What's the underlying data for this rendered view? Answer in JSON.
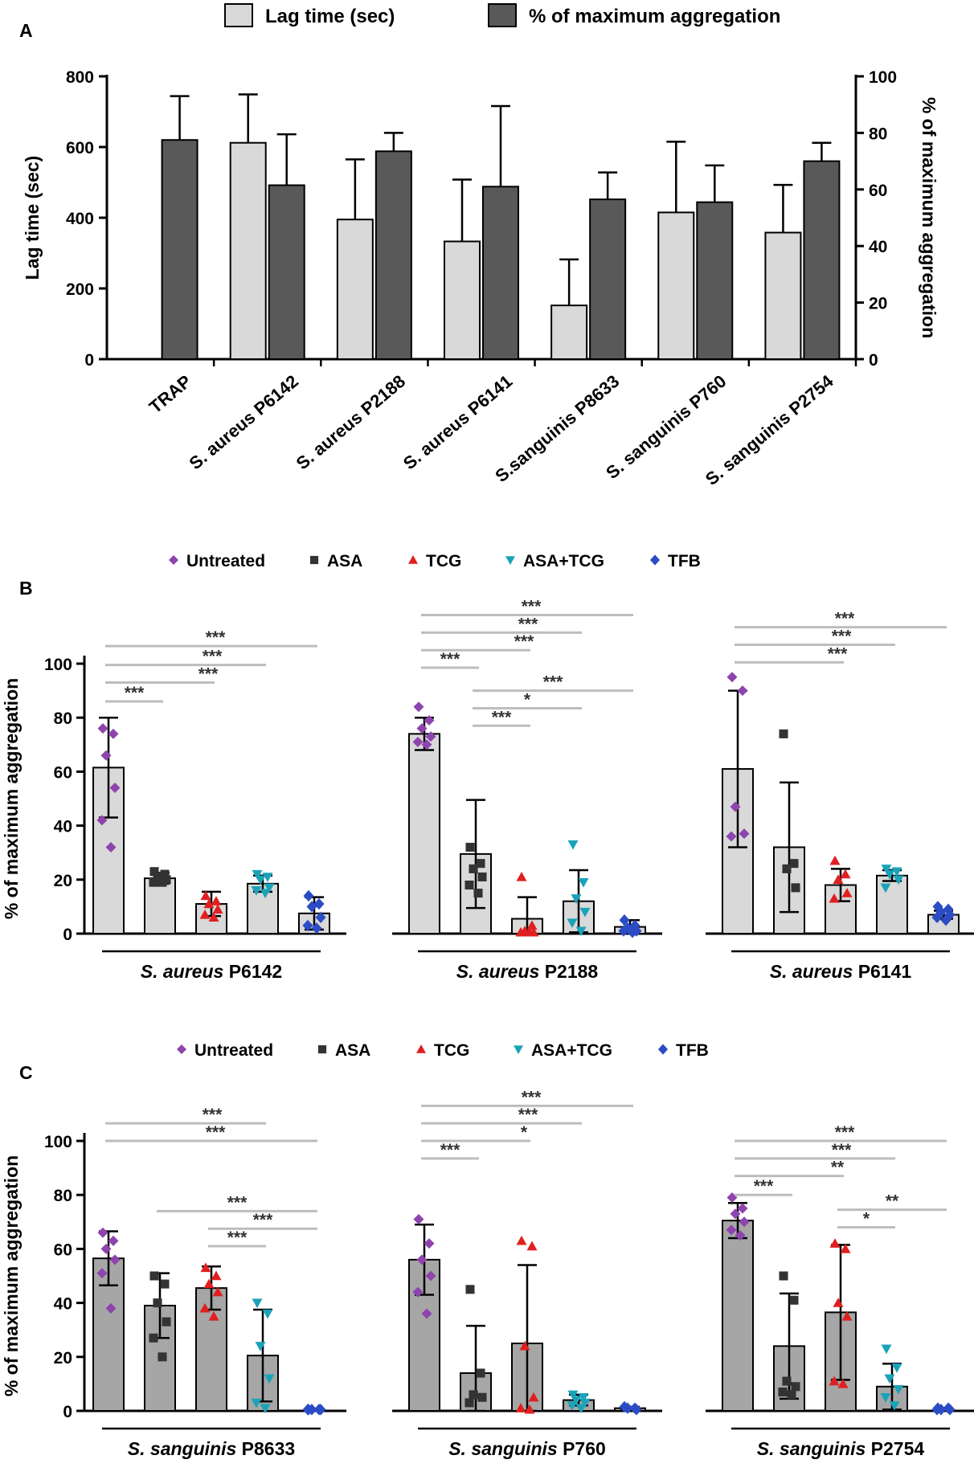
{
  "panels": {
    "A": {
      "label": "A"
    },
    "B": {
      "label": "B"
    },
    "C": {
      "label": "C"
    }
  },
  "colors": {
    "light_bar": "#d9d9d9",
    "dark_bar": "#595959",
    "gray_bar": "#a6a6a6",
    "sig_line": "#bdbdbd",
    "Untreated": "#8e44ad",
    "ASA": "#333333",
    "TCG": "#e02020",
    "ASA+TCG": "#1aa3b8",
    "TFB": "#2b4cc4"
  },
  "chart_data": [
    {
      "id": "A",
      "type": "bar",
      "legend": [
        "Lag time (sec)",
        "% of maximum aggregation"
      ],
      "categories": [
        "TRAP",
        "S. aureus P6142",
        "S. aureus P2188",
        "S. aureus P6141",
        "S.sanguinis P8633",
        "S. sanguinis P760",
        "S. sanguinis P2754"
      ],
      "series": [
        {
          "name": "Lag time (sec)",
          "axis": "left",
          "values": [
            null,
            612,
            395,
            333,
            152,
            415,
            358
          ],
          "errors": [
            null,
            137,
            170,
            175,
            130,
            200,
            135
          ]
        },
        {
          "name": "% of maximum aggregation",
          "axis": "right",
          "values": [
            77.5,
            61.5,
            73.5,
            61,
            56.5,
            55.5,
            70
          ],
          "errors": [
            15.5,
            18,
            6.5,
            28.5,
            9.5,
            13,
            6.5
          ]
        }
      ],
      "ylabel": "Lag time (sec)",
      "ylabel_right": "% of maximum aggregation",
      "ylim": [
        0,
        800
      ],
      "ylim_right": [
        0,
        100
      ],
      "yticks": [
        "0",
        "200",
        "400",
        "600",
        "800"
      ],
      "yticks_right": [
        "0",
        "20",
        "40",
        "60",
        "80",
        "100"
      ]
    },
    {
      "id": "B",
      "type": "bar",
      "legend": [
        "Untreated",
        "ASA",
        "TCG",
        "ASA+TCG",
        "TFB"
      ],
      "ylabel": "% of maximum aggregation",
      "ylim": [
        0,
        100
      ],
      "yticks": [
        "0",
        "20",
        "40",
        "60",
        "80",
        "100"
      ],
      "groups": [
        {
          "strain_italic": "S. aureus",
          "strain_id": "P6142",
          "bars": [
            {
              "name": "Untreated",
              "value": 61.5,
              "error": 18.5,
              "points": [
                76,
                74,
                66,
                54,
                42,
                32
              ]
            },
            {
              "name": "ASA",
              "value": 20.5,
              "error": 2,
              "points": [
                23,
                22,
                21,
                20,
                19,
                19
              ]
            },
            {
              "name": "TCG",
              "value": 11,
              "error": 4.5,
              "points": [
                14,
                12,
                11,
                9,
                7,
                6
              ]
            },
            {
              "name": "ASA+TCG",
              "value": 18.5,
              "error": 3,
              "points": [
                22,
                21,
                20,
                17,
                16,
                15
              ]
            },
            {
              "name": "TFB",
              "value": 7.5,
              "error": 6,
              "points": [
                14,
                11,
                10,
                6,
                3,
                2
              ]
            }
          ],
          "sig": [
            {
              "from": 0,
              "to": 1,
              "stars": "***"
            },
            {
              "from": 0,
              "to": 2,
              "stars": "***"
            },
            {
              "from": 0,
              "to": 3,
              "stars": "***"
            },
            {
              "from": 0,
              "to": 4,
              "stars": "***"
            }
          ]
        },
        {
          "strain_italic": "S. aureus",
          "strain_id": "P2188",
          "bars": [
            {
              "name": "Untreated",
              "value": 74,
              "error": 6,
              "points": [
                84,
                79,
                76,
                73,
                71,
                70
              ]
            },
            {
              "name": "ASA",
              "value": 29.5,
              "error": 20,
              "points": [
                32,
                26,
                24,
                21,
                18,
                15
              ]
            },
            {
              "name": "TCG",
              "value": 5.5,
              "error": 8,
              "points": [
                21,
                3,
                1,
                0.5,
                0.5,
                0.5
              ]
            },
            {
              "name": "ASA+TCG",
              "value": 12,
              "error": 11.5,
              "points": [
                33,
                19,
                13,
                8,
                4,
                1
              ]
            },
            {
              "name": "TFB",
              "value": 2.5,
              "error": 2.5,
              "points": [
                5,
                3,
                2,
                1,
                1,
                0.5
              ]
            }
          ],
          "sig": [
            {
              "from": 0,
              "to": 1,
              "stars": "***"
            },
            {
              "from": 0,
              "to": 2,
              "stars": "***"
            },
            {
              "from": 0,
              "to": 3,
              "stars": "***"
            },
            {
              "from": 0,
              "to": 4,
              "stars": "***"
            },
            {
              "from": 1,
              "to": 2,
              "stars": "***"
            },
            {
              "from": 1,
              "to": 3,
              "stars": "*"
            },
            {
              "from": 1,
              "to": 4,
              "stars": "***"
            }
          ]
        },
        {
          "strain_italic": "S. aureus",
          "strain_id": "P6141",
          "bars": [
            {
              "name": "Untreated",
              "value": 61,
              "error": 29,
              "points": [
                95,
                90,
                47,
                37,
                36
              ]
            },
            {
              "name": "ASA",
              "value": 32,
              "error": 24,
              "points": [
                74,
                26,
                24,
                17
              ]
            },
            {
              "name": "TCG",
              "value": 18,
              "error": 6,
              "points": [
                27,
                22,
                20,
                15,
                13
              ]
            },
            {
              "name": "ASA+TCG",
              "value": 21.5,
              "error": 2,
              "points": [
                24,
                23,
                22,
                20,
                17
              ]
            },
            {
              "name": "TFB",
              "value": 7,
              "error": 1.5,
              "points": [
                10,
                9,
                8,
                7,
                6,
                5
              ]
            }
          ],
          "sig": [
            {
              "from": 0,
              "to": 2,
              "stars": "***"
            },
            {
              "from": 0,
              "to": 3,
              "stars": "***"
            },
            {
              "from": 0,
              "to": 4,
              "stars": "***"
            }
          ]
        }
      ]
    },
    {
      "id": "C",
      "type": "bar",
      "legend": [
        "Untreated",
        "ASA",
        "TCG",
        "ASA+TCG",
        "TFB"
      ],
      "ylabel": "% of maximum aggregation",
      "ylim": [
        0,
        100
      ],
      "yticks": [
        "0",
        "20",
        "40",
        "60",
        "80",
        "100"
      ],
      "groups": [
        {
          "strain_italic": "S. sanguinis",
          "strain_id": "P8633",
          "bars": [
            {
              "name": "Untreated",
              "value": 56.5,
              "error": 10,
              "points": [
                66,
                63,
                60,
                56,
                51,
                38
              ]
            },
            {
              "name": "ASA",
              "value": 39,
              "error": 12,
              "points": [
                50,
                47,
                40,
                33,
                27,
                20
              ]
            },
            {
              "name": "TCG",
              "value": 45.5,
              "error": 8,
              "points": [
                53,
                50,
                47,
                44,
                38,
                35
              ]
            },
            {
              "name": "ASA+TCG",
              "value": 20.5,
              "error": 17,
              "points": [
                40,
                36,
                24,
                12,
                3,
                1
              ]
            },
            {
              "name": "TFB",
              "value": 0.5,
              "error": 0,
              "points": [
                0.5,
                0.5,
                0.5,
                0.5,
                0.5
              ]
            }
          ],
          "sig": [
            {
              "from": 0,
              "to": 3,
              "stars": "***"
            },
            {
              "from": 0,
              "to": 4,
              "stars": "***"
            },
            {
              "from": 1,
              "to": 4,
              "stars": "***"
            },
            {
              "from": 2,
              "to": 4,
              "stars": "***"
            },
            {
              "from": 2,
              "to": 3,
              "stars": "***"
            }
          ]
        },
        {
          "strain_italic": "S. sanguinis",
          "strain_id": "P760",
          "bars": [
            {
              "name": "Untreated",
              "value": 56,
              "error": 13,
              "points": [
                71,
                62,
                56,
                50,
                44,
                36
              ]
            },
            {
              "name": "ASA",
              "value": 14,
              "error": 17.5,
              "points": [
                45,
                14,
                6,
                5,
                3
              ]
            },
            {
              "name": "TCG",
              "value": 25,
              "error": 29,
              "points": [
                63,
                61,
                24,
                5,
                1,
                0.5
              ]
            },
            {
              "name": "ASA+TCG",
              "value": 4,
              "error": 2,
              "points": [
                6,
                5,
                4,
                3,
                2,
                1
              ]
            },
            {
              "name": "TFB",
              "value": 1,
              "error": 0.5,
              "points": [
                1.5,
                1,
                1,
                0.5
              ]
            }
          ],
          "sig": [
            {
              "from": 0,
              "to": 1,
              "stars": "***"
            },
            {
              "from": 0,
              "to": 2,
              "stars": "*"
            },
            {
              "from": 0,
              "to": 3,
              "stars": "***"
            },
            {
              "from": 0,
              "to": 4,
              "stars": "***"
            }
          ]
        },
        {
          "strain_italic": "S. sanguinis",
          "strain_id": "P2754",
          "bars": [
            {
              "name": "Untreated",
              "value": 70.5,
              "error": 6.5,
              "points": [
                79,
                75,
                73,
                70,
                67,
                65
              ]
            },
            {
              "name": "ASA",
              "value": 24,
              "error": 19.5,
              "points": [
                50,
                41,
                11,
                9,
                7,
                6
              ]
            },
            {
              "name": "TCG",
              "value": 36.5,
              "error": 25,
              "points": [
                62,
                60,
                40,
                35,
                11,
                10
              ]
            },
            {
              "name": "ASA+TCG",
              "value": 9,
              "error": 8.5,
              "points": [
                23,
                16,
                12,
                8,
                5,
                2
              ]
            },
            {
              "name": "TFB",
              "value": 0.5,
              "error": 0.5,
              "points": [
                1,
                1,
                0.5,
                0.5,
                0.5
              ]
            }
          ],
          "sig": [
            {
              "from": 0,
              "to": 1,
              "stars": "***"
            },
            {
              "from": 0,
              "to": 2,
              "stars": "**"
            },
            {
              "from": 0,
              "to": 3,
              "stars": "***"
            },
            {
              "from": 0,
              "to": 4,
              "stars": "***"
            },
            {
              "from": 2,
              "to": 3,
              "stars": "*"
            },
            {
              "from": 2,
              "to": 4,
              "stars": "**"
            }
          ]
        }
      ]
    }
  ]
}
